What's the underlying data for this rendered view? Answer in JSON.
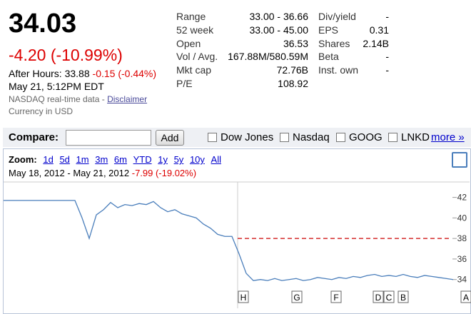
{
  "quote": {
    "price": "34.03",
    "change": "-4.20 (-10.99%)",
    "after_hours_label": "After Hours:",
    "after_hours_price": "33.88",
    "after_hours_change": "-0.15 (-0.44%)",
    "timestamp": "May 21, 5:12PM EDT",
    "source": "NASDAQ real-time data -",
    "disclaimer": "Disclaimer",
    "currency": "Currency in USD"
  },
  "stats_left": [
    {
      "label": "Range",
      "value": "33.00 - 36.66"
    },
    {
      "label": "52 week",
      "value": "33.00 - 45.00"
    },
    {
      "label": "Open",
      "value": "36.53"
    },
    {
      "label": "Vol / Avg.",
      "value": "167.88M/580.59M"
    },
    {
      "label": "Mkt cap",
      "value": "72.76B"
    },
    {
      "label": "P/E",
      "value": "108.92"
    }
  ],
  "stats_right": [
    {
      "label": "Div/yield",
      "value": "-"
    },
    {
      "label": "EPS",
      "value": "0.31"
    },
    {
      "label": "Shares",
      "value": "2.14B"
    },
    {
      "label": "Beta",
      "value": "-"
    },
    {
      "label": "Inst. own",
      "value": "-"
    }
  ],
  "compare": {
    "label": "Compare:",
    "button": "Add",
    "options": [
      "Dow Jones",
      "Nasdaq",
      "GOOG",
      "LNKD"
    ],
    "more": "more »"
  },
  "zoom": {
    "label": "Zoom:",
    "options": [
      "1d",
      "5d",
      "1m",
      "3m",
      "6m",
      "YTD",
      "1y",
      "5y",
      "10y",
      "All"
    ]
  },
  "range": {
    "dates": "May 18, 2012 - May 21, 2012",
    "change": "-7.99 (-19.02%)"
  },
  "chart": {
    "type": "line",
    "color": "#4a7ebb",
    "values": [
      41.7,
      41.7,
      41.7,
      41.7,
      41.7,
      41.7,
      41.7,
      41.7,
      41.7,
      41.7,
      41.7,
      40.0,
      38.0,
      40.3,
      40.8,
      41.5,
      41.0,
      41.3,
      41.2,
      41.4,
      41.3,
      41.6,
      41.0,
      40.6,
      40.8,
      40.4,
      40.2,
      40.0,
      39.4,
      39.0,
      38.4,
      38.2,
      38.2,
      36.5,
      34.6,
      33.9,
      34.0,
      33.9,
      34.1,
      33.9,
      34.0,
      34.1,
      33.9,
      34.0,
      34.2,
      34.1,
      34.0,
      34.2,
      34.1,
      34.3,
      34.2,
      34.4,
      34.5,
      34.3,
      34.4,
      34.3,
      34.5,
      34.3,
      34.2,
      34.4,
      34.3,
      34.2,
      34.1,
      34.0
    ],
    "previous_close": 38.0,
    "ylim": [
      31.2,
      43.5
    ],
    "yticks": [
      34,
      36,
      38,
      40,
      42
    ],
    "events": [
      "H",
      "G",
      "F",
      "D",
      "C",
      "B",
      "A"
    ]
  }
}
